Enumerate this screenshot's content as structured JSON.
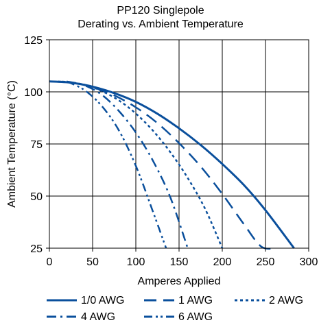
{
  "chart_data": {
    "type": "line",
    "title": "PP120 Singlepole",
    "subtitle": "Derating vs. Ambient Temperature",
    "xlabel": "Amperes Applied",
    "ylabel": "Ambient Temperature (°C)",
    "xlim": [
      0,
      300
    ],
    "ylim": [
      25,
      125
    ],
    "xticks": [
      "0",
      "50",
      "100",
      "150",
      "200",
      "250",
      "300"
    ],
    "yticks": [
      "25",
      "50",
      "75",
      "100",
      "125"
    ],
    "grid": true,
    "line_color": "#0a4f9c",
    "legend_position": "bottom",
    "series": [
      {
        "name": "1/0 AWG",
        "dash": "solid",
        "x": [
          0,
          25,
          50,
          75,
          100,
          125,
          150,
          175,
          200,
          225,
          250,
          283
        ],
        "y": [
          105,
          104.4,
          102.5,
          99.4,
          95.2,
          89.5,
          82.5,
          74.5,
          65.4,
          55.3,
          43.2,
          25
        ]
      },
      {
        "name": "1 AWG",
        "dash": "long-dash",
        "x": [
          10,
          30,
          50,
          75,
          100,
          125,
          150,
          175,
          200,
          225,
          245,
          262
        ],
        "y": [
          105,
          104.2,
          102.2,
          98.3,
          92.6,
          85.0,
          75.4,
          64.2,
          51.0,
          36.5,
          25.8,
          25
        ]
      },
      {
        "name": "2 AWG",
        "dash": "dot",
        "x": [
          15,
          40,
          60,
          80,
          100,
          120,
          140,
          160,
          180,
          200
        ],
        "y": [
          105,
          103.5,
          100.5,
          96.0,
          89.6,
          81.3,
          71.0,
          58.7,
          44.0,
          25
        ]
      },
      {
        "name": "4 AWG",
        "dash": "dash-dot",
        "x": [
          20,
          40,
          60,
          80,
          100,
          120,
          140,
          160
        ],
        "y": [
          105,
          103.2,
          98.8,
          91.0,
          80.5,
          66.8,
          49.3,
          25
        ]
      },
      {
        "name": "6 AWG",
        "dash": "dash-dot-dot",
        "x": [
          20,
          40,
          60,
          80,
          100,
          120,
          135
        ],
        "y": [
          105,
          101.0,
          93.5,
          81.8,
          64.5,
          42.3,
          25
        ]
      }
    ]
  }
}
